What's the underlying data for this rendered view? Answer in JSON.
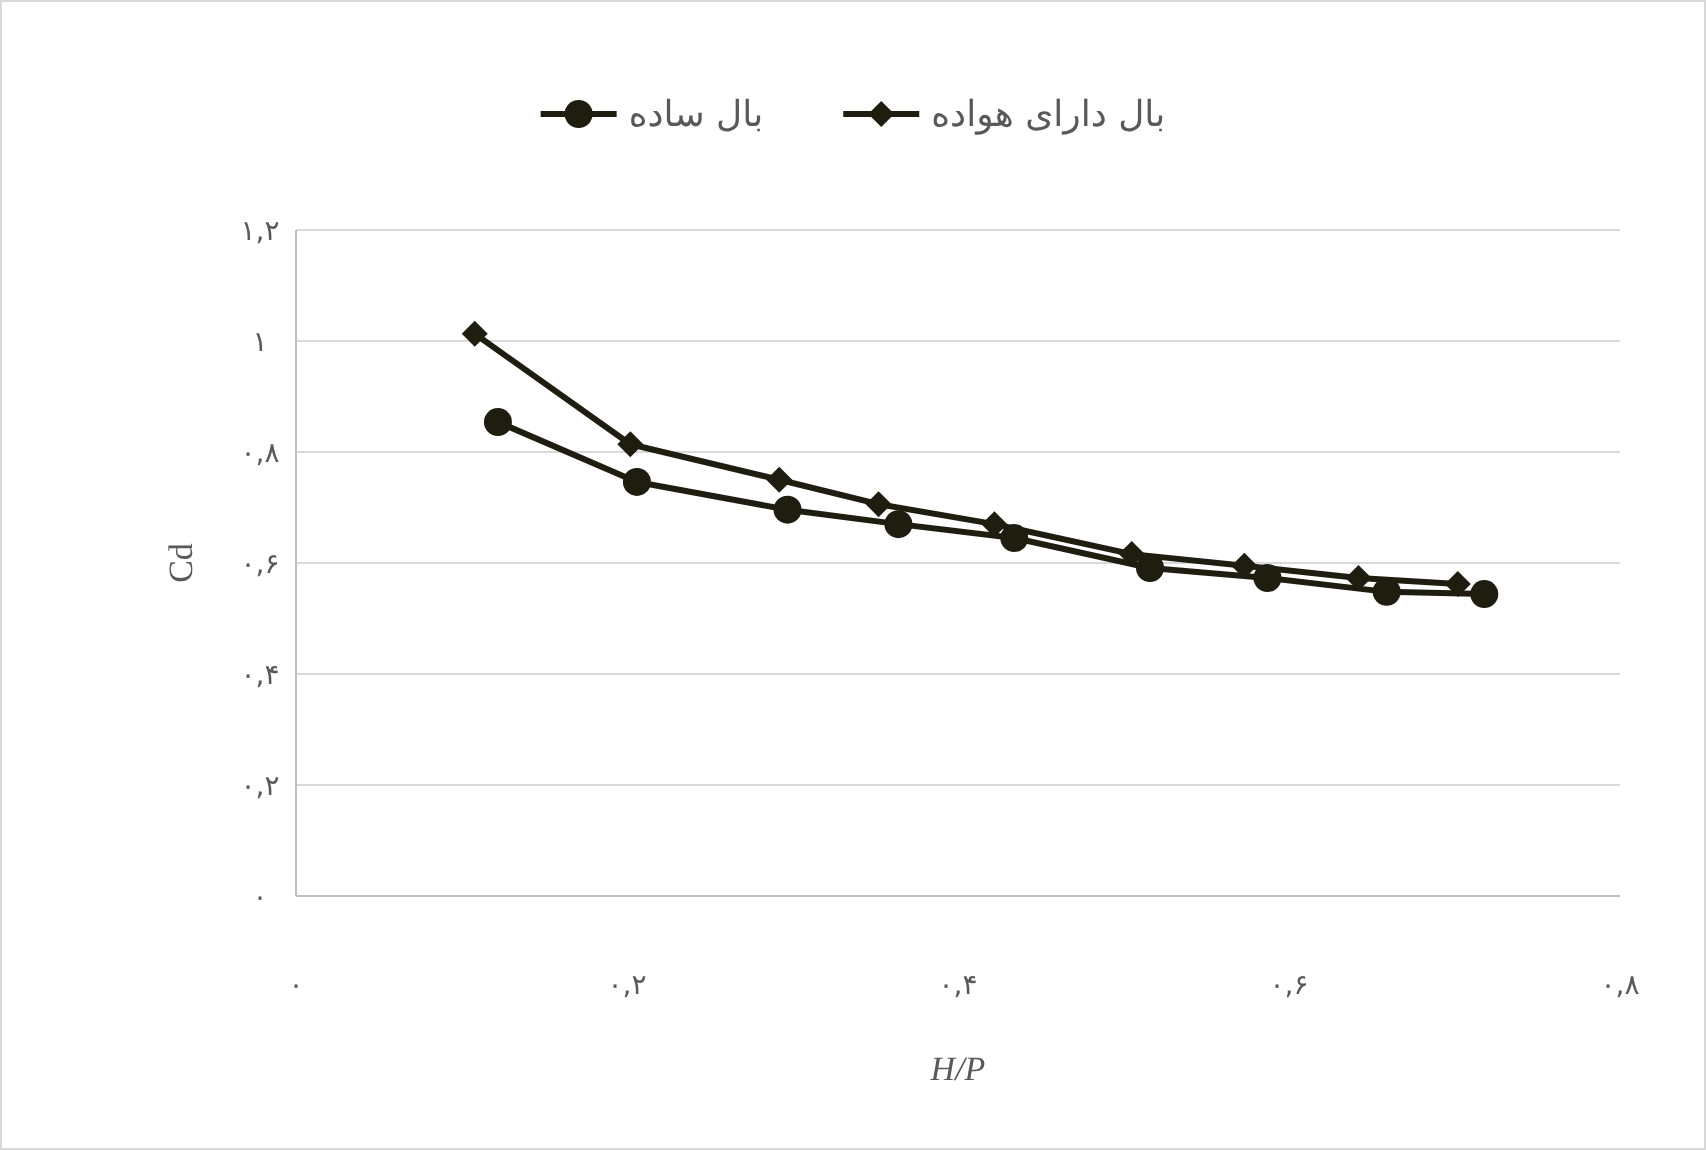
{
  "chart_data": {
    "type": "line",
    "xlabel": "H/P",
    "ylabel": "Cd",
    "xlim": [
      0,
      0.8
    ],
    "ylim": [
      0,
      1.2
    ],
    "xticks": [
      {
        "value": 0,
        "label": "۰"
      },
      {
        "value": 0.2,
        "label": "۰,۲"
      },
      {
        "value": 0.4,
        "label": "۰,۴"
      },
      {
        "value": 0.6,
        "label": "۰,۶"
      },
      {
        "value": 0.8,
        "label": "۰,۸"
      }
    ],
    "yticks": [
      {
        "value": 0,
        "label": "۰"
      },
      {
        "value": 0.2,
        "label": "۰,۲"
      },
      {
        "value": 0.4,
        "label": "۰,۴"
      },
      {
        "value": 0.6,
        "label": "۰,۶"
      },
      {
        "value": 0.8,
        "label": "۰,۸"
      },
      {
        "value": 1,
        "label": "۱"
      },
      {
        "value": 1.2,
        "label": "۱,۲"
      }
    ],
    "grid": "y",
    "legend": "top",
    "line_style": "solid",
    "series": [
      {
        "name": "بال ساده",
        "color": "#1f1c10",
        "marker": "circle",
        "x": [
          0.122,
          0.206,
          0.297,
          0.364,
          0.434,
          0.516,
          0.587,
          0.659,
          0.718
        ],
        "values": [
          0.854,
          0.746,
          0.696,
          0.67,
          0.645,
          0.591,
          0.573,
          0.548,
          0.544
        ]
      },
      {
        "name": "بال دارای هواده",
        "color": "#1f1c10",
        "marker": "diamond",
        "x": [
          0.108,
          0.202,
          0.292,
          0.352,
          0.422,
          0.505,
          0.573,
          0.642,
          0.702
        ],
        "values": [
          1.013,
          0.814,
          0.75,
          0.706,
          0.67,
          0.616,
          0.595,
          0.573,
          0.562
        ]
      }
    ]
  }
}
